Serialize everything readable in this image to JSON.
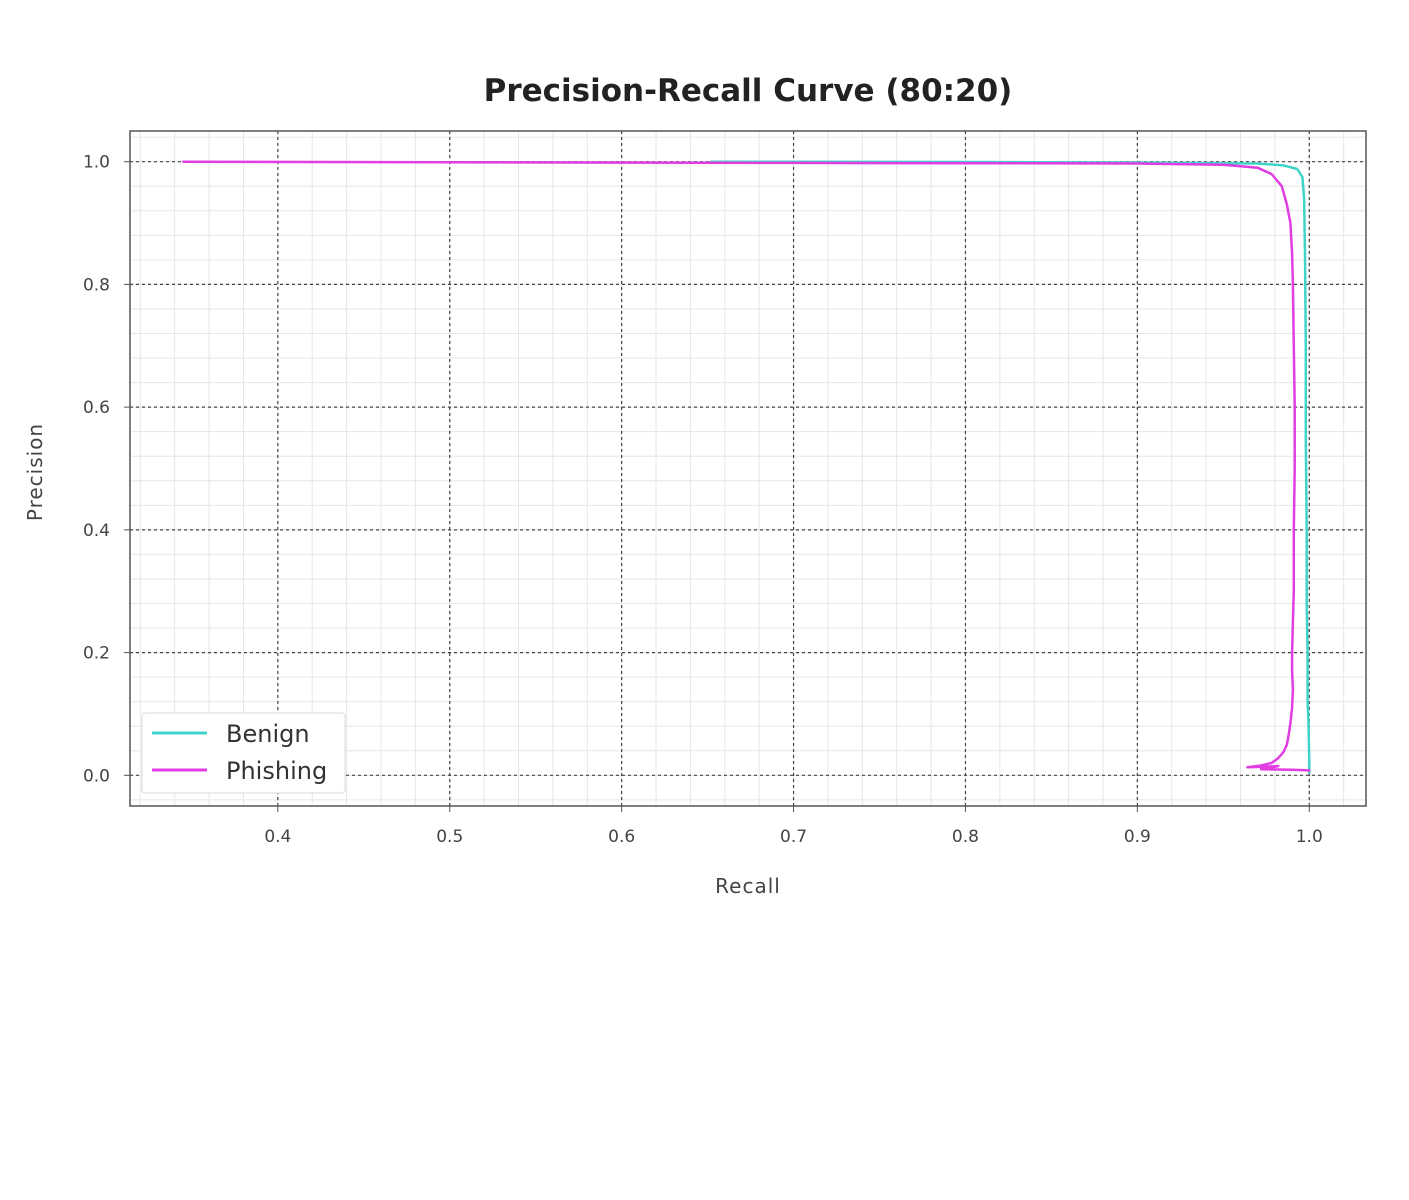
{
  "chart_data": {
    "type": "line",
    "title": "Precision-Recall Curve (80:20)",
    "xlabel": "Recall",
    "ylabel": "Precision",
    "xlim": [
      0.314,
      1.033
    ],
    "ylim": [
      -0.05,
      1.05
    ],
    "xticks": [
      0.4,
      0.5,
      0.6,
      0.7,
      0.8,
      0.9,
      1.0
    ],
    "xtick_labels": [
      "0.4",
      "0.5",
      "0.6",
      "0.7",
      "0.8",
      "0.9",
      "1.0"
    ],
    "yticks": [
      0.0,
      0.2,
      0.4,
      0.6,
      0.8,
      1.0
    ],
    "ytick_labels": [
      "0.0",
      "0.2",
      "0.4",
      "0.6",
      "0.8",
      "1.0"
    ],
    "grid": true,
    "minor_grid": true,
    "legend_position": "lower-left",
    "series": [
      {
        "name": "Benign",
        "color": "#3fd3c9",
        "x": [
          0.652,
          0.8,
          0.9,
          0.97,
          0.985,
          0.993,
          0.996,
          0.997,
          0.9975,
          0.998,
          0.998,
          0.9985,
          0.9985,
          0.999,
          0.999,
          0.9995,
          1.0,
          1.0
        ],
        "y": [
          1.0,
          0.9995,
          0.9985,
          0.997,
          0.994,
          0.988,
          0.975,
          0.94,
          0.85,
          0.7,
          0.55,
          0.4,
          0.28,
          0.2,
          0.12,
          0.09,
          0.02,
          0.005
        ]
      },
      {
        "name": "Phishing",
        "color": "#e23ce3",
        "x": [
          0.345,
          0.5,
          0.7,
          0.9,
          0.95,
          0.97,
          0.978,
          0.984,
          0.987,
          0.989,
          0.99,
          0.9905,
          0.991,
          0.9915,
          0.9915,
          0.991,
          0.991,
          0.9905,
          0.99,
          0.99,
          0.9905,
          0.99,
          0.989,
          0.988,
          0.987,
          0.985,
          0.982,
          0.978,
          0.972,
          0.964,
          0.974,
          0.982,
          0.972,
          0.99,
          1.0
        ],
        "y": [
          1.0,
          0.999,
          0.998,
          0.997,
          0.995,
          0.99,
          0.98,
          0.96,
          0.93,
          0.9,
          0.85,
          0.8,
          0.7,
          0.6,
          0.5,
          0.4,
          0.3,
          0.25,
          0.2,
          0.17,
          0.14,
          0.11,
          0.085,
          0.065,
          0.05,
          0.038,
          0.028,
          0.02,
          0.016,
          0.013,
          0.014,
          0.015,
          0.01,
          0.009,
          0.008
        ]
      }
    ]
  }
}
